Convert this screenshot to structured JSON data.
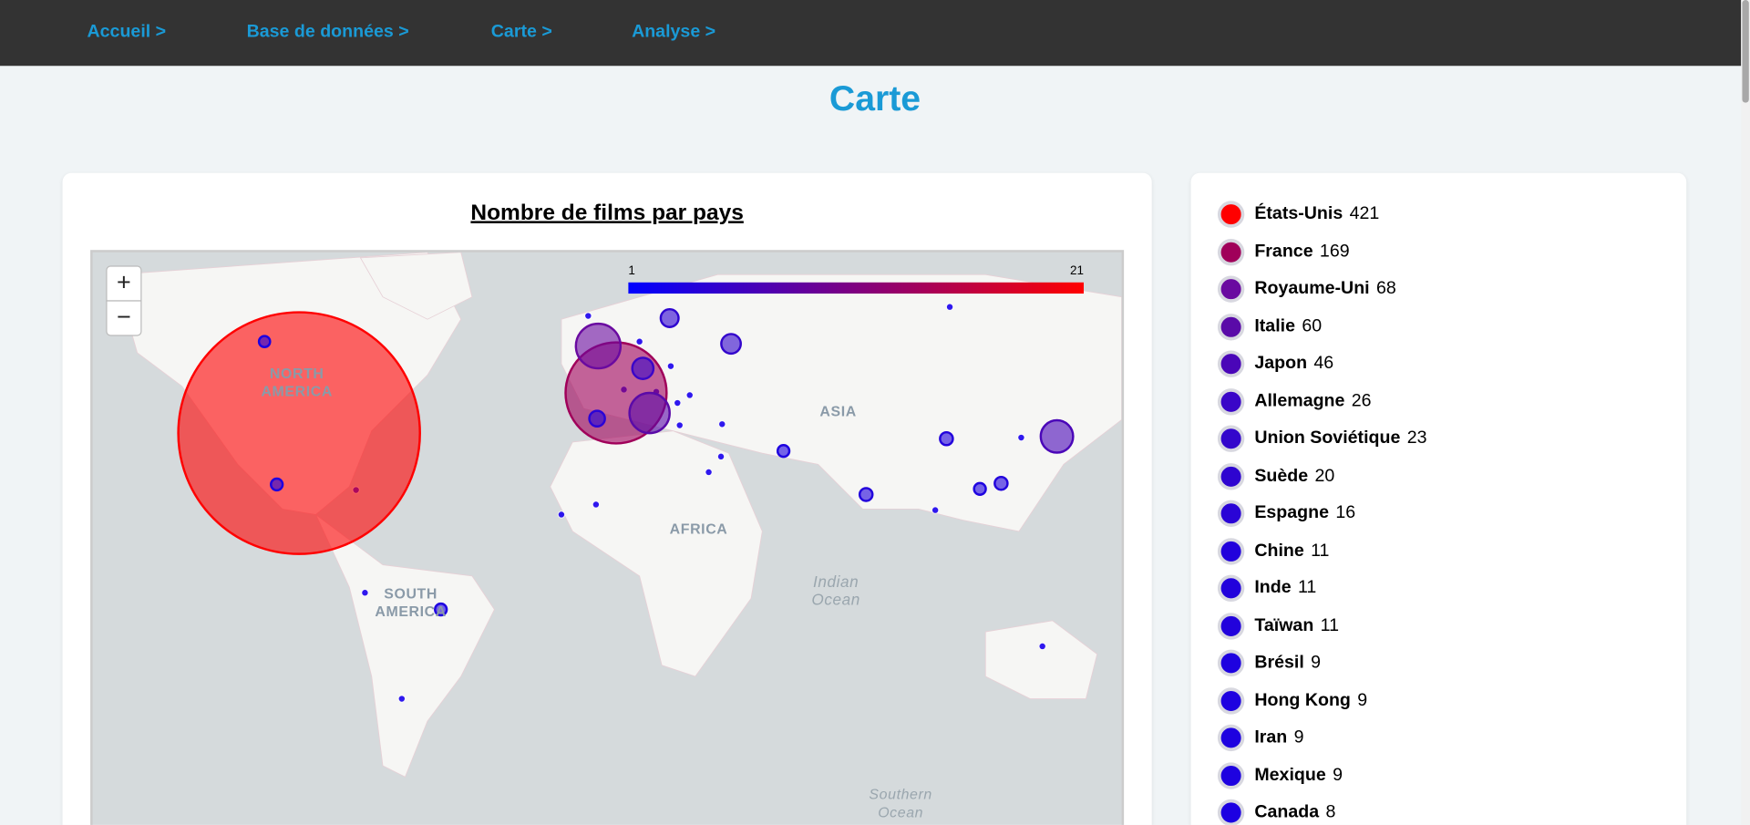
{
  "nav": [
    "Accueil >",
    "Base de données >",
    "Carte >",
    "Analyse >"
  ],
  "page_title": "Carte",
  "map": {
    "title": "Nombre de films par pays",
    "zoom_in": "+",
    "zoom_out": "−",
    "scale": [
      1,
      21
    ],
    "labels": [
      {
        "lines": [
          "NORTH",
          "AMERICA"
        ]
      },
      {
        "lines": [
          "SOUTH",
          "AMERICA"
        ]
      },
      {
        "lines": [
          "ASIA"
        ]
      },
      {
        "lines": [
          "AFRICA"
        ]
      },
      {
        "lines": [
          "Indian",
          "Ocean"
        ]
      },
      {
        "lines": [
          "Southern",
          "Ocean"
        ]
      }
    ]
  },
  "countries": [
    {
      "name": "États-Unis",
      "count": 421,
      "color": "#ff0000"
    },
    {
      "name": "France",
      "count": 169,
      "color": "#a0005a"
    },
    {
      "name": "Royaume-Uni",
      "count": 68,
      "color": "#6a0aa0"
    },
    {
      "name": "Italie",
      "count": 60,
      "color": "#5a0aa8"
    },
    {
      "name": "Japon",
      "count": 46,
      "color": "#4a06b8"
    },
    {
      "name": "Allemagne",
      "count": 26,
      "color": "#3a06c8"
    },
    {
      "name": "Union Soviétique",
      "count": 23,
      "color": "#3306cc"
    },
    {
      "name": "Suède",
      "count": 20,
      "color": "#2e04d0"
    },
    {
      "name": "Espagne",
      "count": 16,
      "color": "#2a04d6"
    },
    {
      "name": "Chine",
      "count": 11,
      "color": "#2202dc"
    },
    {
      "name": "Inde",
      "count": 11,
      "color": "#2202dc"
    },
    {
      "name": "Taïwan",
      "count": 11,
      "color": "#2202dc"
    },
    {
      "name": "Brésil",
      "count": 9,
      "color": "#1e02e0"
    },
    {
      "name": "Hong Kong",
      "count": 9,
      "color": "#1e02e0"
    },
    {
      "name": "Iran",
      "count": 9,
      "color": "#1e02e0"
    },
    {
      "name": "Mexique",
      "count": 9,
      "color": "#1e02e0"
    },
    {
      "name": "Canada",
      "count": 8,
      "color": "#1c00e2"
    }
  ]
}
